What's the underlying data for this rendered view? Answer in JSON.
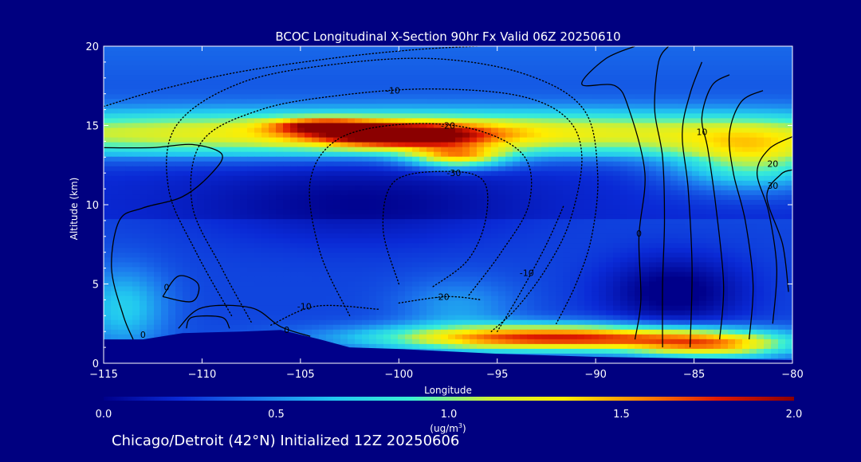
{
  "chart_data": {
    "type": "heatmap",
    "title": "BCOC Longitudinal X-Section 90hr  Fx Valid 06Z 20250610",
    "xlabel": "Longitude",
    "ylabel": "Altitude (km)",
    "xlim": [
      -115,
      -80
    ],
    "ylim": [
      0,
      20
    ],
    "x_ticks": [
      -115,
      -110,
      -105,
      -100,
      -95,
      -90,
      -85,
      -80
    ],
    "y_ticks": [
      0,
      5,
      10,
      15,
      20
    ],
    "x_tick_labels": [
      "−115",
      "−110",
      "−105",
      "−100",
      "−95",
      "−90",
      "−85",
      "−80"
    ],
    "y_tick_labels": [
      "0",
      "5",
      "10",
      "15",
      "20"
    ],
    "colorbar": {
      "min": 0.0,
      "max": 2.0,
      "ticks": [
        0.0,
        0.5,
        1.0,
        1.5,
        2.0
      ],
      "tick_labels": [
        "0.0",
        "0.5",
        "1.0",
        "1.5",
        "2.0"
      ],
      "unit_label": "(ug/m",
      "unit_sup": "3",
      "unit_end": ")",
      "colors": [
        "#00008a",
        "#0a2ad6",
        "#1c78ee",
        "#22c8f0",
        "#3af0d4",
        "#c8f03a",
        "#ffee00",
        "#ff8800",
        "#e01a00",
        "#8b0000"
      ]
    },
    "terrain": [
      {
        "lon": -115,
        "alt": 1.5
      },
      {
        "lon": -113,
        "alt": 1.5
      },
      {
        "lon": -111,
        "alt": 1.9
      },
      {
        "lon": -108,
        "alt": 2.0
      },
      {
        "lon": -106,
        "alt": 2.1
      },
      {
        "lon": -104,
        "alt": 1.5
      },
      {
        "lon": -102.5,
        "alt": 1.0
      },
      {
        "lon": -100,
        "alt": 0.9
      },
      {
        "lon": -95,
        "alt": 0.6
      },
      {
        "lon": -90,
        "alt": 0.4
      },
      {
        "lon": -85,
        "alt": 0.3
      },
      {
        "lon": -80,
        "alt": 0.2
      }
    ],
    "field_features": [
      {
        "name": "upper-layer",
        "lon": -100,
        "alt": 14.5,
        "sx": 30,
        "sy": 1.4,
        "value": 1.05
      },
      {
        "name": "upper-layer-east",
        "lon": -82,
        "alt": 12.8,
        "sx": 4,
        "sy": 1.8,
        "value": 0.75
      },
      {
        "name": "upper-plume",
        "lon": -100,
        "alt": 14.4,
        "sx": 4.2,
        "sy": 0.75,
        "value": 1.2
      },
      {
        "name": "upper-plume-tail",
        "lon": -97,
        "alt": 13.0,
        "sx": 2.4,
        "sy": 0.7,
        "value": 0.9
      },
      {
        "name": "upper-plume-west",
        "lon": -104,
        "alt": 15.0,
        "sx": 2.5,
        "sy": 0.45,
        "value": 0.75
      },
      {
        "name": "surface-plume",
        "lon": -92,
        "alt": 1.6,
        "sx": 8.5,
        "sy": 0.8,
        "value": 1.5
      },
      {
        "name": "surface-plume-east",
        "lon": -84,
        "alt": 1.1,
        "sx": 4,
        "sy": 0.8,
        "value": 0.9
      },
      {
        "name": "low-west-blob",
        "lon": -114,
        "alt": 3.5,
        "sx": 2.2,
        "sy": 2.5,
        "value": 0.4
      },
      {
        "name": "low-mid-blob",
        "lon": -97,
        "alt": 3.5,
        "sx": 3,
        "sy": 1.8,
        "value": 0.25
      },
      {
        "name": "east-core-low",
        "lon": -86,
        "alt": 4.5,
        "sx": 3.5,
        "sy": 2.2,
        "value": -0.35
      },
      {
        "name": "mid-core-low",
        "lon": -102,
        "alt": 10,
        "sx": 8,
        "sy": 2.5,
        "value": -0.2
      }
    ],
    "contours": [
      {
        "label": "0",
        "style": "solid",
        "label_lon": -113,
        "label_alt": 1.8,
        "path": [
          [
            -113.5,
            1.5
          ],
          [
            -114,
            3
          ],
          [
            -114.6,
            6
          ],
          [
            -114.2,
            9
          ],
          [
            -113,
            9.8
          ],
          [
            -111,
            10.5
          ],
          [
            -109.5,
            12
          ],
          [
            -109,
            13.2
          ],
          [
            -110.5,
            13.8
          ],
          [
            -112.5,
            13.6
          ],
          [
            -115,
            13.6
          ]
        ]
      },
      {
        "label": "0",
        "style": "solid",
        "label_lon": -111.8,
        "label_alt": 4.8,
        "path": [
          [
            -112,
            4.2
          ],
          [
            -111.2,
            5.5
          ],
          [
            -110.2,
            5.0
          ],
          [
            -110.5,
            3.9
          ],
          [
            -112,
            4.2
          ]
        ]
      },
      {
        "label": "",
        "style": "solid",
        "label_lon": -110,
        "label_alt": 2.3,
        "path": [
          [
            -110.8,
            2.2
          ],
          [
            -110.5,
            2.9
          ],
          [
            -109,
            2.9
          ],
          [
            -108.6,
            2.2
          ]
        ]
      },
      {
        "label": "0",
        "style": "solid",
        "label_lon": -105.7,
        "label_alt": 2.1,
        "path": [
          [
            -111.2,
            2.2
          ],
          [
            -110,
            3.5
          ],
          [
            -107.5,
            3.5
          ],
          [
            -106,
            2.3
          ],
          [
            -104.5,
            1.7
          ]
        ]
      },
      {
        "label": "0",
        "style": "solid",
        "label_lon": -87.8,
        "label_alt": 8.2,
        "path": [
          [
            -88,
            1.5
          ],
          [
            -87.7,
            4
          ],
          [
            -87.8,
            8
          ],
          [
            -87.5,
            12
          ],
          [
            -88.3,
            16
          ],
          [
            -89,
            17.5
          ],
          [
            -90.7,
            17.6
          ],
          [
            -89.5,
            19.2
          ],
          [
            -88,
            20
          ]
        ]
      },
      {
        "label": "",
        "style": "solid",
        "label_lon": -86,
        "label_alt": 10,
        "path": [
          [
            -86.6,
            1.0
          ],
          [
            -86.6,
            5
          ],
          [
            -86.5,
            9
          ],
          [
            -86.6,
            13
          ],
          [
            -87,
            16
          ],
          [
            -86.8,
            19
          ],
          [
            -86.3,
            20
          ]
        ]
      },
      {
        "label": "",
        "style": "solid",
        "label_lon": -85,
        "label_alt": 10,
        "path": [
          [
            -85.2,
            1.0
          ],
          [
            -85.1,
            6
          ],
          [
            -85.3,
            11
          ],
          [
            -85.6,
            14.5
          ],
          [
            -85.2,
            17
          ],
          [
            -84.6,
            19
          ]
        ]
      },
      {
        "label": "10",
        "style": "solid",
        "label_lon": -84.6,
        "label_alt": 14.6,
        "path": [
          [
            -83.7,
            1.5
          ],
          [
            -83.5,
            5
          ],
          [
            -83.9,
            10
          ],
          [
            -84.3,
            13.5
          ],
          [
            -84.6,
            15.5
          ],
          [
            -84.1,
            17.5
          ],
          [
            -83.2,
            18.2
          ]
        ]
      },
      {
        "label": "",
        "style": "solid",
        "label_lon": -82,
        "label_alt": 10,
        "path": [
          [
            -82.2,
            1.5
          ],
          [
            -82.0,
            5
          ],
          [
            -82.4,
            9
          ],
          [
            -83.0,
            12
          ],
          [
            -83.2,
            14.5
          ],
          [
            -82.6,
            16.5
          ],
          [
            -81.5,
            17.2
          ]
        ]
      },
      {
        "label": "20",
        "style": "solid",
        "label_lon": -81,
        "label_alt": 12.6,
        "path": [
          [
            -81.0,
            2.5
          ],
          [
            -80.8,
            6
          ],
          [
            -81.2,
            9.5
          ],
          [
            -81.8,
            12
          ],
          [
            -81.2,
            13.5
          ],
          [
            -80,
            14.3
          ]
        ]
      },
      {
        "label": "30",
        "style": "solid",
        "label_lon": -81,
        "label_alt": 11.2,
        "path": [
          [
            -80.2,
            4.5
          ],
          [
            -80.5,
            7.5
          ],
          [
            -81.3,
            10.5
          ],
          [
            -80.6,
            11.9
          ],
          [
            -80,
            12.2
          ]
        ]
      },
      {
        "label": "-10",
        "style": "dotted",
        "label_lon": -100.3,
        "label_alt": 17.2,
        "path": [
          [
            -107.5,
            2.6
          ],
          [
            -109,
            6
          ],
          [
            -110.5,
            10
          ],
          [
            -110,
            14
          ],
          [
            -107,
            16
          ],
          [
            -103,
            16.9
          ],
          [
            -98.5,
            17.3
          ],
          [
            -94,
            16.9
          ],
          [
            -91.5,
            15.5
          ],
          [
            -90.7,
            13
          ],
          [
            -91.3,
            9
          ],
          [
            -92.5,
            6
          ],
          [
            -94,
            3.5
          ],
          [
            -95.3,
            2.0
          ]
        ]
      },
      {
        "label": "-20",
        "style": "dotted",
        "label_lon": -97.5,
        "label_alt": 15.0,
        "path": [
          [
            -102.5,
            3.0
          ],
          [
            -104,
            7
          ],
          [
            -104.5,
            11.5
          ],
          [
            -103,
            14.2
          ],
          [
            -99.5,
            15.1
          ],
          [
            -96,
            14.7
          ],
          [
            -93.6,
            13
          ],
          [
            -93.4,
            10
          ],
          [
            -94.8,
            7
          ],
          [
            -96.5,
            4.2
          ]
        ]
      },
      {
        "label": "-30",
        "style": "dotted",
        "label_lon": -97.2,
        "label_alt": 12.0,
        "path": [
          [
            -100,
            5
          ],
          [
            -100.8,
            8.5
          ],
          [
            -100.2,
            11.5
          ],
          [
            -97.5,
            12.1
          ],
          [
            -95.7,
            11.5
          ],
          [
            -95.6,
            9
          ],
          [
            -96.5,
            6.5
          ],
          [
            -98.3,
            4.8
          ]
        ]
      },
      {
        "label": "-10",
        "style": "dotted",
        "label_lon": -104.8,
        "label_alt": 3.6,
        "path": [
          [
            -106.5,
            2.4
          ],
          [
            -104.2,
            3.6
          ],
          [
            -101,
            3.4
          ]
        ]
      },
      {
        "label": "-20",
        "style": "dotted",
        "label_lon": -97.8,
        "label_alt": 4.2,
        "path": [
          [
            -100,
            3.8
          ],
          [
            -97.6,
            4.2
          ],
          [
            -95.8,
            4.0
          ]
        ]
      },
      {
        "label": "-10",
        "style": "dotted",
        "label_lon": -93.5,
        "label_alt": 5.7,
        "path": [
          [
            -95,
            2.0
          ],
          [
            -93.8,
            4.5
          ],
          [
            -92.5,
            7.5
          ],
          [
            -91.6,
            10
          ]
        ]
      },
      {
        "label": "",
        "style": "dotted",
        "label_lon": -112,
        "label_alt": 17,
        "path": [
          [
            -115,
            16.2
          ],
          [
            -112,
            17.3
          ],
          [
            -108,
            18.4
          ],
          [
            -103,
            19.3
          ],
          [
            -99,
            19.8
          ],
          [
            -96,
            20
          ]
        ]
      },
      {
        "label": "",
        "style": "dotted",
        "label_lon": -112,
        "label_alt": 15,
        "path": [
          [
            -108.5,
            3
          ],
          [
            -110.3,
            7
          ],
          [
            -111.7,
            11
          ],
          [
            -111.3,
            15
          ],
          [
            -108,
            17.7
          ],
          [
            -103,
            18.9
          ],
          [
            -98,
            19.2
          ],
          [
            -93.5,
            18.2
          ],
          [
            -90.6,
            16
          ],
          [
            -89.9,
            12
          ],
          [
            -90.2,
            8
          ],
          [
            -91,
            5
          ],
          [
            -92,
            2.5
          ]
        ]
      }
    ]
  },
  "footer": {
    "text": "Chicago/Detroit (42°N) Initialized 12Z 20250606"
  }
}
